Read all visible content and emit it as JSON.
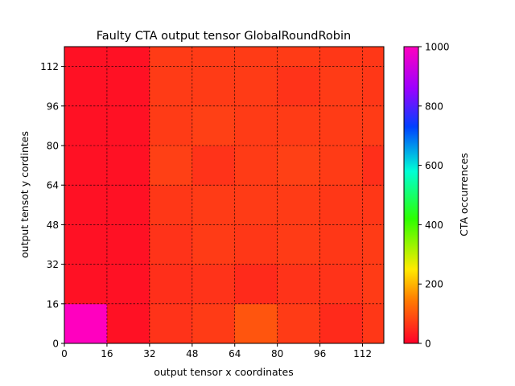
{
  "chart_data": {
    "type": "heatmap",
    "title": "Faulty CTA output tensor GlobalRoundRobin",
    "xlabel": "output tensor x coordinates",
    "ylabel": "output tensot y cordintes",
    "colorbar_label": "CTA occurrences",
    "colormap": "gist_rainbow_r",
    "xlim": [
      0,
      120
    ],
    "ylim": [
      0,
      120
    ],
    "clim": [
      0,
      1000
    ],
    "grid": true,
    "xticks": [
      0,
      16,
      32,
      48,
      64,
      80,
      96,
      112
    ],
    "yticks": [
      0,
      16,
      32,
      48,
      64,
      80,
      96,
      112
    ],
    "colorbar_ticks": [
      0,
      200,
      400,
      600,
      800,
      1000
    ],
    "x_edges": [
      0,
      16,
      32,
      48,
      64,
      80,
      96,
      112,
      120
    ],
    "y_edges": [
      0,
      16,
      32,
      48,
      64,
      80,
      96,
      112,
      120
    ],
    "values": [
      [
        1000,
        20,
        60,
        70,
        100,
        70,
        50,
        65
      ],
      [
        20,
        20,
        55,
        60,
        50,
        60,
        60,
        70
      ],
      [
        20,
        20,
        60,
        70,
        65,
        70,
        65,
        70
      ],
      [
        20,
        20,
        65,
        70,
        70,
        70,
        65,
        65
      ],
      [
        20,
        20,
        75,
        60,
        70,
        75,
        70,
        55
      ],
      [
        20,
        20,
        70,
        75,
        70,
        70,
        70,
        70
      ],
      [
        20,
        20,
        70,
        70,
        70,
        60,
        70,
        65
      ],
      [
        20,
        20,
        70,
        70,
        70,
        70,
        65,
        65
      ]
    ]
  }
}
